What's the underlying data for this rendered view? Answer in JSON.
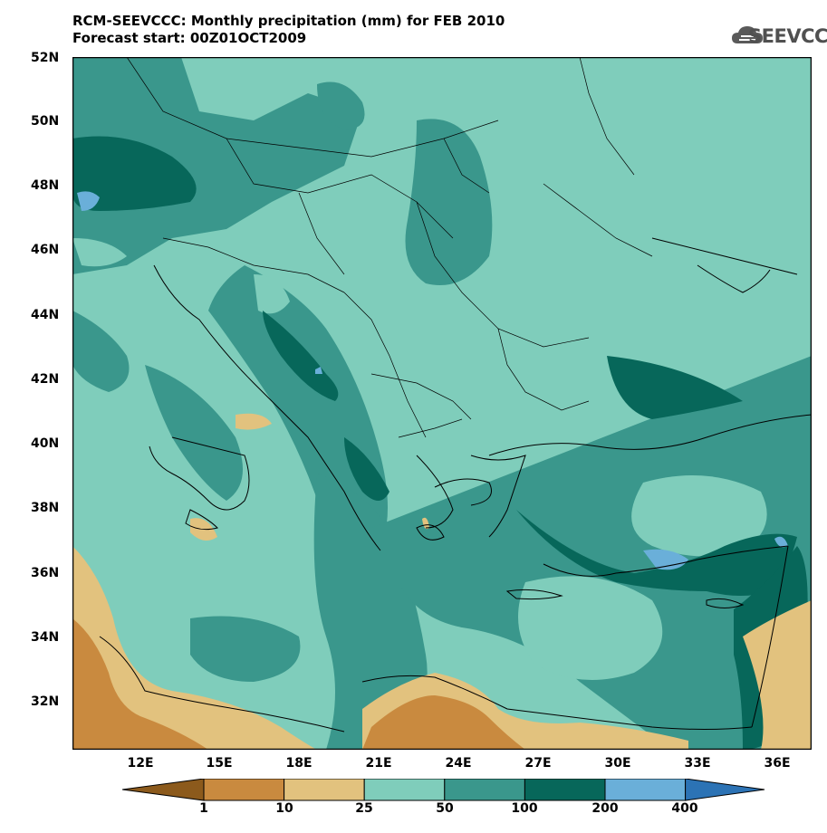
{
  "title": {
    "line1": "RCM-SEEVCCC: Monthly precipitation (mm) for FEB 2010",
    "line2": "Forecast start: 00Z01OCT2009"
  },
  "logo": {
    "text": "SEEVCCC",
    "icon": "cloud-icon"
  },
  "map": {
    "lat_labels": [
      "52N",
      "50N",
      "48N",
      "46N",
      "44N",
      "42N",
      "40N",
      "38N",
      "36N",
      "34N",
      "32N"
    ],
    "lon_labels": [
      "12E",
      "15E",
      "18E",
      "21E",
      "24E",
      "27E",
      "30E",
      "33E",
      "36E"
    ]
  },
  "legend": {
    "labels": [
      "1",
      "10",
      "25",
      "50",
      "100",
      "200",
      "400"
    ],
    "colors": [
      "#8c5a1c",
      "#c98a3f",
      "#e2c27e",
      "#7fcdbb",
      "#3a978c",
      "#07675a",
      "#6aafd9",
      "#2c73b5"
    ]
  }
}
